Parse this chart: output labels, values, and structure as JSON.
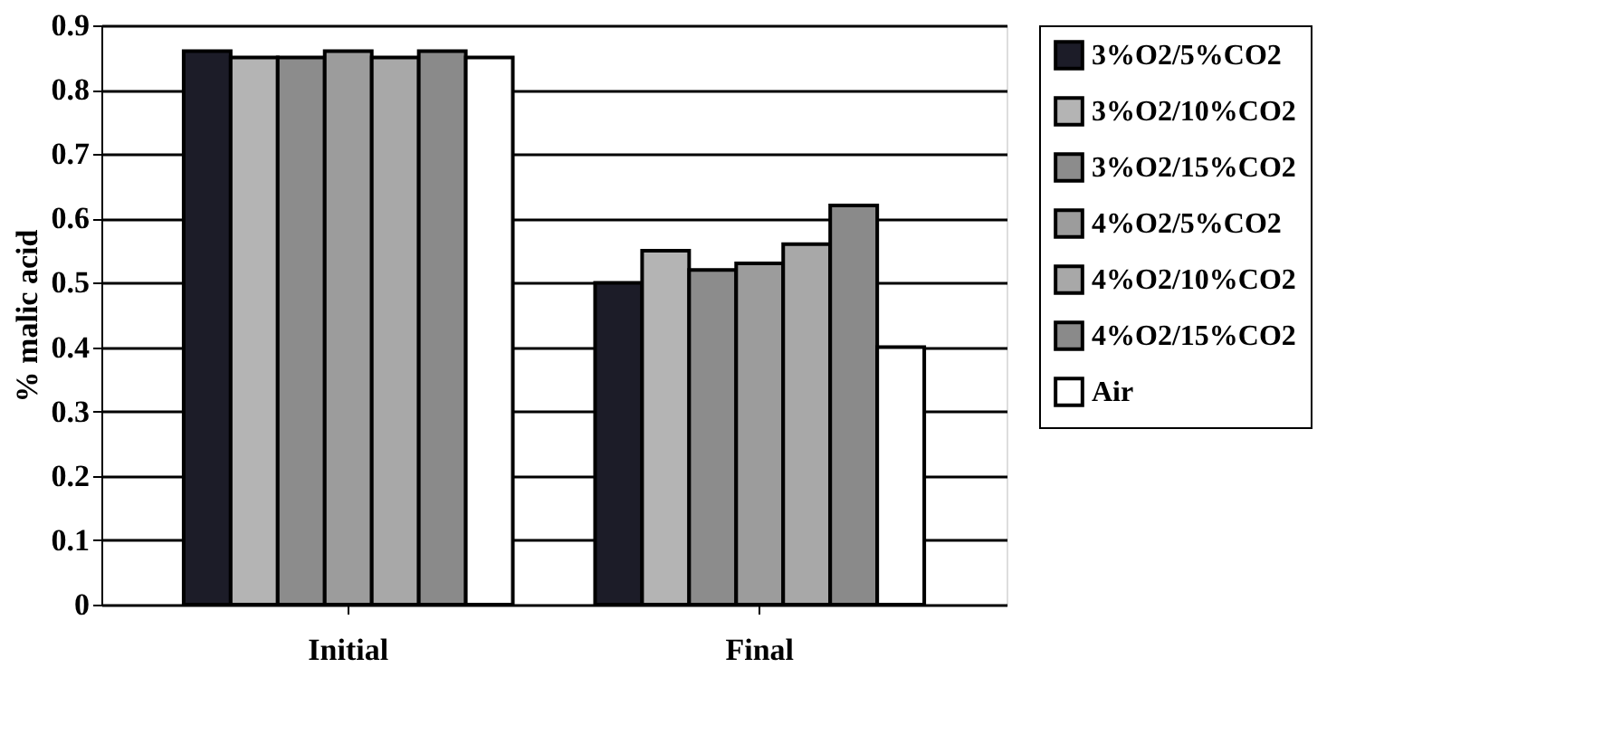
{
  "chart_data": {
    "type": "bar",
    "ylabel": "% malic acid",
    "categories": [
      "Initial",
      "Final"
    ],
    "series": [
      {
        "name": "3%O2/5%CO2",
        "color": "#1c1c28",
        "values": [
          0.86,
          0.5
        ]
      },
      {
        "name": "3%O2/10%CO2",
        "color": "#b4b4b4",
        "values": [
          0.85,
          0.55
        ]
      },
      {
        "name": "3%O2/15%CO2",
        "color": "#8c8c8c",
        "values": [
          0.85,
          0.52
        ]
      },
      {
        "name": "4%O2/5%CO2",
        "color": "#9c9c9c",
        "values": [
          0.86,
          0.53
        ]
      },
      {
        "name": "4%O2/10%CO2",
        "color": "#a8a8a8",
        "values": [
          0.85,
          0.56
        ]
      },
      {
        "name": "4%O2/15%CO2",
        "color": "#8a8a8a",
        "values": [
          0.86,
          0.62
        ]
      },
      {
        "name": "Air",
        "color": "#ffffff",
        "values": [
          0.85,
          0.4
        ]
      }
    ],
    "ylim": [
      0,
      0.9
    ],
    "yticks": [
      {
        "value": 0,
        "label": "0"
      },
      0.1,
      0.2,
      0.3,
      0.4,
      0.5,
      0.6,
      0.7,
      0.8,
      0.9
    ],
    "grid": "y",
    "legend": "right"
  }
}
